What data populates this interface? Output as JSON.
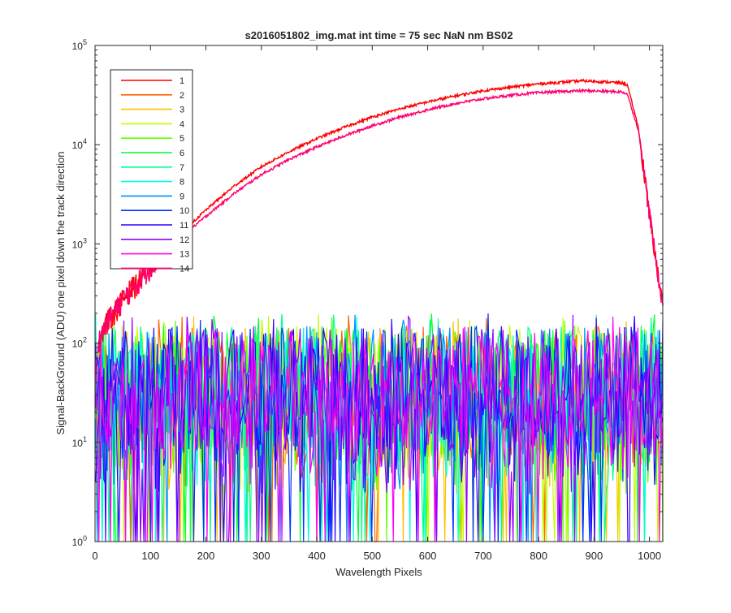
{
  "chart_data": {
    "type": "line",
    "title": "s2016051802_img.mat int time = 75 sec  NaN nm BS02",
    "xlabel": "Wavelength Pixels",
    "ylabel": "Signal-BackGround (ADU) one pixel down the track direction",
    "xlim": [
      0,
      1024
    ],
    "ylim": [
      1,
      100000
    ],
    "yscale": "log",
    "grid": false,
    "legend_position": "top-left",
    "x_ticks": [
      "0",
      "100",
      "200",
      "300",
      "400",
      "500",
      "600",
      "700",
      "800",
      "900",
      "1000"
    ],
    "y_ticks": [
      {
        "base": "10",
        "exp": "0"
      },
      {
        "base": "10",
        "exp": "1"
      },
      {
        "base": "10",
        "exp": "2"
      },
      {
        "base": "10",
        "exp": "3"
      },
      {
        "base": "10",
        "exp": "4"
      },
      {
        "base": "10",
        "exp": "5"
      }
    ],
    "series": [
      {
        "name": "1",
        "color": "#ff0000",
        "kind": "signal",
        "x": [
          5,
          20,
          40,
          60,
          80,
          100,
          120,
          150,
          200,
          250,
          300,
          350,
          400,
          450,
          500,
          550,
          600,
          650,
          700,
          750,
          800,
          850,
          880,
          900,
          950,
          960,
          980,
          1000,
          1015,
          1024
        ],
        "y": [
          100,
          160,
          230,
          330,
          430,
          600,
          850,
          1200,
          2200,
          3800,
          6000,
          8500,
          11500,
          15000,
          19000,
          23000,
          27000,
          31000,
          35000,
          38000,
          41000,
          43000,
          44000,
          43500,
          42000,
          40000,
          15000,
          2000,
          500,
          250
        ]
      },
      {
        "name": "2",
        "color": "#ff6000",
        "kind": "noise"
      },
      {
        "name": "3",
        "color": "#ffc000",
        "kind": "noise"
      },
      {
        "name": "4",
        "color": "#c0ff00",
        "kind": "noise"
      },
      {
        "name": "5",
        "color": "#60ff00",
        "kind": "noise"
      },
      {
        "name": "6",
        "color": "#00ff30",
        "kind": "noise"
      },
      {
        "name": "7",
        "color": "#00ff90",
        "kind": "noise"
      },
      {
        "name": "8",
        "color": "#00ffe0",
        "kind": "noise"
      },
      {
        "name": "9",
        "color": "#0090ff",
        "kind": "noise"
      },
      {
        "name": "10",
        "color": "#0030ff",
        "kind": "noise"
      },
      {
        "name": "11",
        "color": "#3000ff",
        "kind": "noise"
      },
      {
        "name": "12",
        "color": "#9000ff",
        "kind": "noise"
      },
      {
        "name": "13",
        "color": "#ff00f0",
        "kind": "noise"
      },
      {
        "name": "14",
        "color": "#ff0070",
        "kind": "signal",
        "x": [
          5,
          20,
          40,
          60,
          80,
          100,
          120,
          150,
          200,
          250,
          300,
          350,
          400,
          450,
          500,
          550,
          600,
          650,
          700,
          750,
          800,
          850,
          880,
          900,
          950,
          960,
          980,
          1000,
          1015,
          1024
        ],
        "y": [
          100,
          160,
          230,
          330,
          430,
          600,
          800,
          1100,
          1900,
          3200,
          5000,
          7100,
          9500,
          12300,
          15500,
          19000,
          22500,
          26000,
          29000,
          31500,
          33500,
          34500,
          35000,
          34800,
          34000,
          32500,
          14000,
          2000,
          500,
          250
        ]
      }
    ],
    "noise_band": {
      "typical_min": 3,
      "typical_max": 150,
      "peak": 200
    }
  }
}
